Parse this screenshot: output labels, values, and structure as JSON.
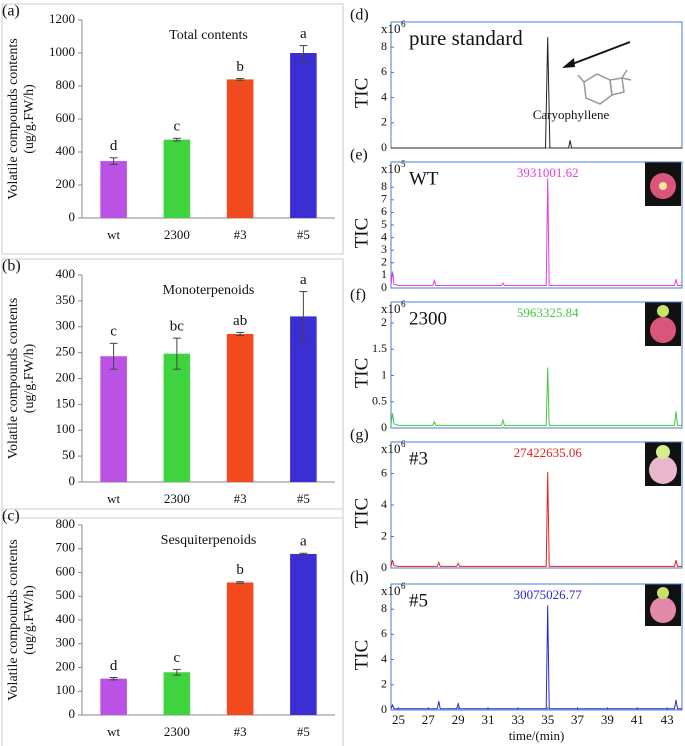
{
  "chart_data": [
    {
      "type": "bar",
      "panel": "(a)",
      "title": "Total contents",
      "ylabel": [
        "Volatile compounds contents",
        "(ug/g.FW/h)"
      ],
      "categories": [
        "wt",
        "2300",
        "#3",
        "#5"
      ],
      "values": [
        345,
        475,
        840,
        1000
      ],
      "errors": [
        20,
        8,
        5,
        45
      ],
      "annotations": [
        "d",
        "c",
        "b",
        "a"
      ],
      "colors": [
        "#bb52e6",
        "#3fd43f",
        "#f04a1e",
        "#3a2fd2"
      ],
      "ylim": [
        0,
        1200
      ],
      "yticks": [
        0,
        200,
        400,
        600,
        800,
        1000,
        1200
      ]
    },
    {
      "type": "bar",
      "panel": "(b)",
      "title": "Monoterpenoids",
      "ylabel": [
        "Volatile compounds contents",
        "(ug/g.FW/h)"
      ],
      "categories": [
        "wt",
        "2300",
        "#3",
        "#5"
      ],
      "values": [
        243,
        248,
        286,
        320
      ],
      "errors": [
        25,
        30,
        3,
        48
      ],
      "annotations": [
        "c",
        "bc",
        "ab",
        "a"
      ],
      "colors": [
        "#bb52e6",
        "#3fd43f",
        "#f04a1e",
        "#3a2fd2"
      ],
      "ylim": [
        0,
        400
      ],
      "yticks": [
        0,
        50,
        100,
        150,
        200,
        250,
        300,
        350,
        400
      ]
    },
    {
      "type": "bar",
      "panel": "(c)",
      "title": "Sesquiterpenoids",
      "ylabel": [
        "Volatile compounds contents",
        "(ug/g.FW/h)"
      ],
      "categories": [
        "wt",
        "2300",
        "#3",
        "#5"
      ],
      "values": [
        153,
        180,
        558,
        678
      ],
      "errors": [
        5,
        12,
        3,
        3
      ],
      "annotations": [
        "d",
        "c",
        "b",
        "a"
      ],
      "colors": [
        "#bb52e6",
        "#3fd43f",
        "#f04a1e",
        "#3a2fd2"
      ],
      "ylim": [
        0,
        800
      ],
      "yticks": [
        0,
        100,
        200,
        300,
        400,
        500,
        600,
        700,
        800
      ]
    },
    {
      "type": "line",
      "panel": "(d)",
      "title": "pure standard",
      "ylabel": "TIC",
      "scale_label": "x10",
      "scale_exponent": "6",
      "annotation": "Caryophyllene",
      "color": "#222222",
      "x": [
        24.5,
        34.85,
        35.0,
        35.15,
        36.4,
        36.5,
        36.6,
        44
      ],
      "values": [
        0,
        0,
        8.8,
        0,
        0,
        0.6,
        0,
        0
      ],
      "xlim": [
        24.5,
        44
      ],
      "ylim": [
        0,
        10
      ],
      "yticks": [
        0,
        2,
        4,
        6,
        8
      ]
    },
    {
      "type": "line",
      "panel": "(e)",
      "title": "WT",
      "ylabel": "TIC",
      "scale_label": "x10",
      "scale_exponent": "5",
      "annotation": "3931001.62",
      "color": "#e040e0",
      "x": [
        24.5,
        24.6,
        24.7,
        25.0,
        27.3,
        27.4,
        27.5,
        31.9,
        32.0,
        32.1,
        34.9,
        35.0,
        35.1,
        43.5,
        43.6,
        43.7,
        44
      ],
      "values": [
        0.2,
        1.3,
        0.3,
        0.2,
        0.2,
        0.6,
        0.2,
        0.2,
        0.4,
        0.2,
        0.2,
        8.7,
        0.2,
        0.2,
        0.7,
        0.2,
        0.2
      ],
      "xlim": [
        24.5,
        44
      ],
      "ylim": [
        0,
        10
      ],
      "yticks": [
        0,
        1,
        2,
        3,
        4,
        5,
        6,
        7,
        8
      ]
    },
    {
      "type": "line",
      "panel": "(f)",
      "title": "2300",
      "ylabel": "TIC",
      "scale_label": "x10",
      "scale_exponent": "6",
      "annotation": "5963325.84",
      "color": "#44c844",
      "x": [
        24.5,
        24.6,
        24.7,
        25.0,
        27.3,
        27.4,
        27.5,
        31.9,
        32.0,
        32.1,
        34.9,
        35.0,
        35.1,
        43.5,
        43.6,
        43.7,
        44
      ],
      "values": [
        0.05,
        0.28,
        0.08,
        0.05,
        0.05,
        0.12,
        0.05,
        0.05,
        0.15,
        0.05,
        0.05,
        1.15,
        0.05,
        0.05,
        0.32,
        0.05,
        0.05
      ],
      "xlim": [
        24.5,
        44
      ],
      "ylim": [
        0,
        2.4
      ],
      "yticks": [
        0,
        0.5,
        1,
        1.5,
        2
      ]
    },
    {
      "type": "line",
      "panel": "(g)",
      "title": "#3",
      "ylabel": "TIC",
      "scale_label": "x10",
      "scale_exponent": "6",
      "annotation": "27422635.06",
      "color": "#e82020",
      "x": [
        24.5,
        24.6,
        24.7,
        25.0,
        27.6,
        27.7,
        27.8,
        28.9,
        29.0,
        29.1,
        34.9,
        35.0,
        35.1,
        43.5,
        43.6,
        43.7,
        44
      ],
      "values": [
        0.1,
        0.5,
        0.15,
        0.1,
        0.1,
        0.35,
        0.1,
        0.1,
        0.3,
        0.1,
        0.1,
        6.1,
        0.1,
        0.1,
        0.5,
        0.1,
        0.1
      ],
      "xlim": [
        24.5,
        44
      ],
      "ylim": [
        0,
        8
      ],
      "yticks": [
        0,
        2,
        4,
        6
      ]
    },
    {
      "type": "line",
      "panel": "(h)",
      "title": "#5",
      "ylabel": "TIC",
      "xlabel": "time/(min)",
      "scale_label": "x10",
      "scale_exponent": "6",
      "annotation": "30075026.77",
      "color": "#2a2ad0",
      "x": [
        24.5,
        24.6,
        24.7,
        25.0,
        27.6,
        27.7,
        27.8,
        28.9,
        29.0,
        29.1,
        34.9,
        35.0,
        35.1,
        43.5,
        43.6,
        43.7,
        44
      ],
      "values": [
        0.1,
        0.4,
        0.1,
        0.1,
        0.1,
        0.7,
        0.1,
        0.1,
        0.5,
        0.1,
        0.1,
        8.3,
        0.1,
        0.1,
        0.8,
        0.1,
        0.1
      ],
      "xlim": [
        24.5,
        44
      ],
      "ylim": [
        0,
        10
      ],
      "yticks": [
        0,
        2,
        4,
        6,
        8
      ],
      "xticks": [
        25,
        27,
        29,
        31,
        33,
        35,
        37,
        39,
        41,
        43
      ]
    }
  ]
}
